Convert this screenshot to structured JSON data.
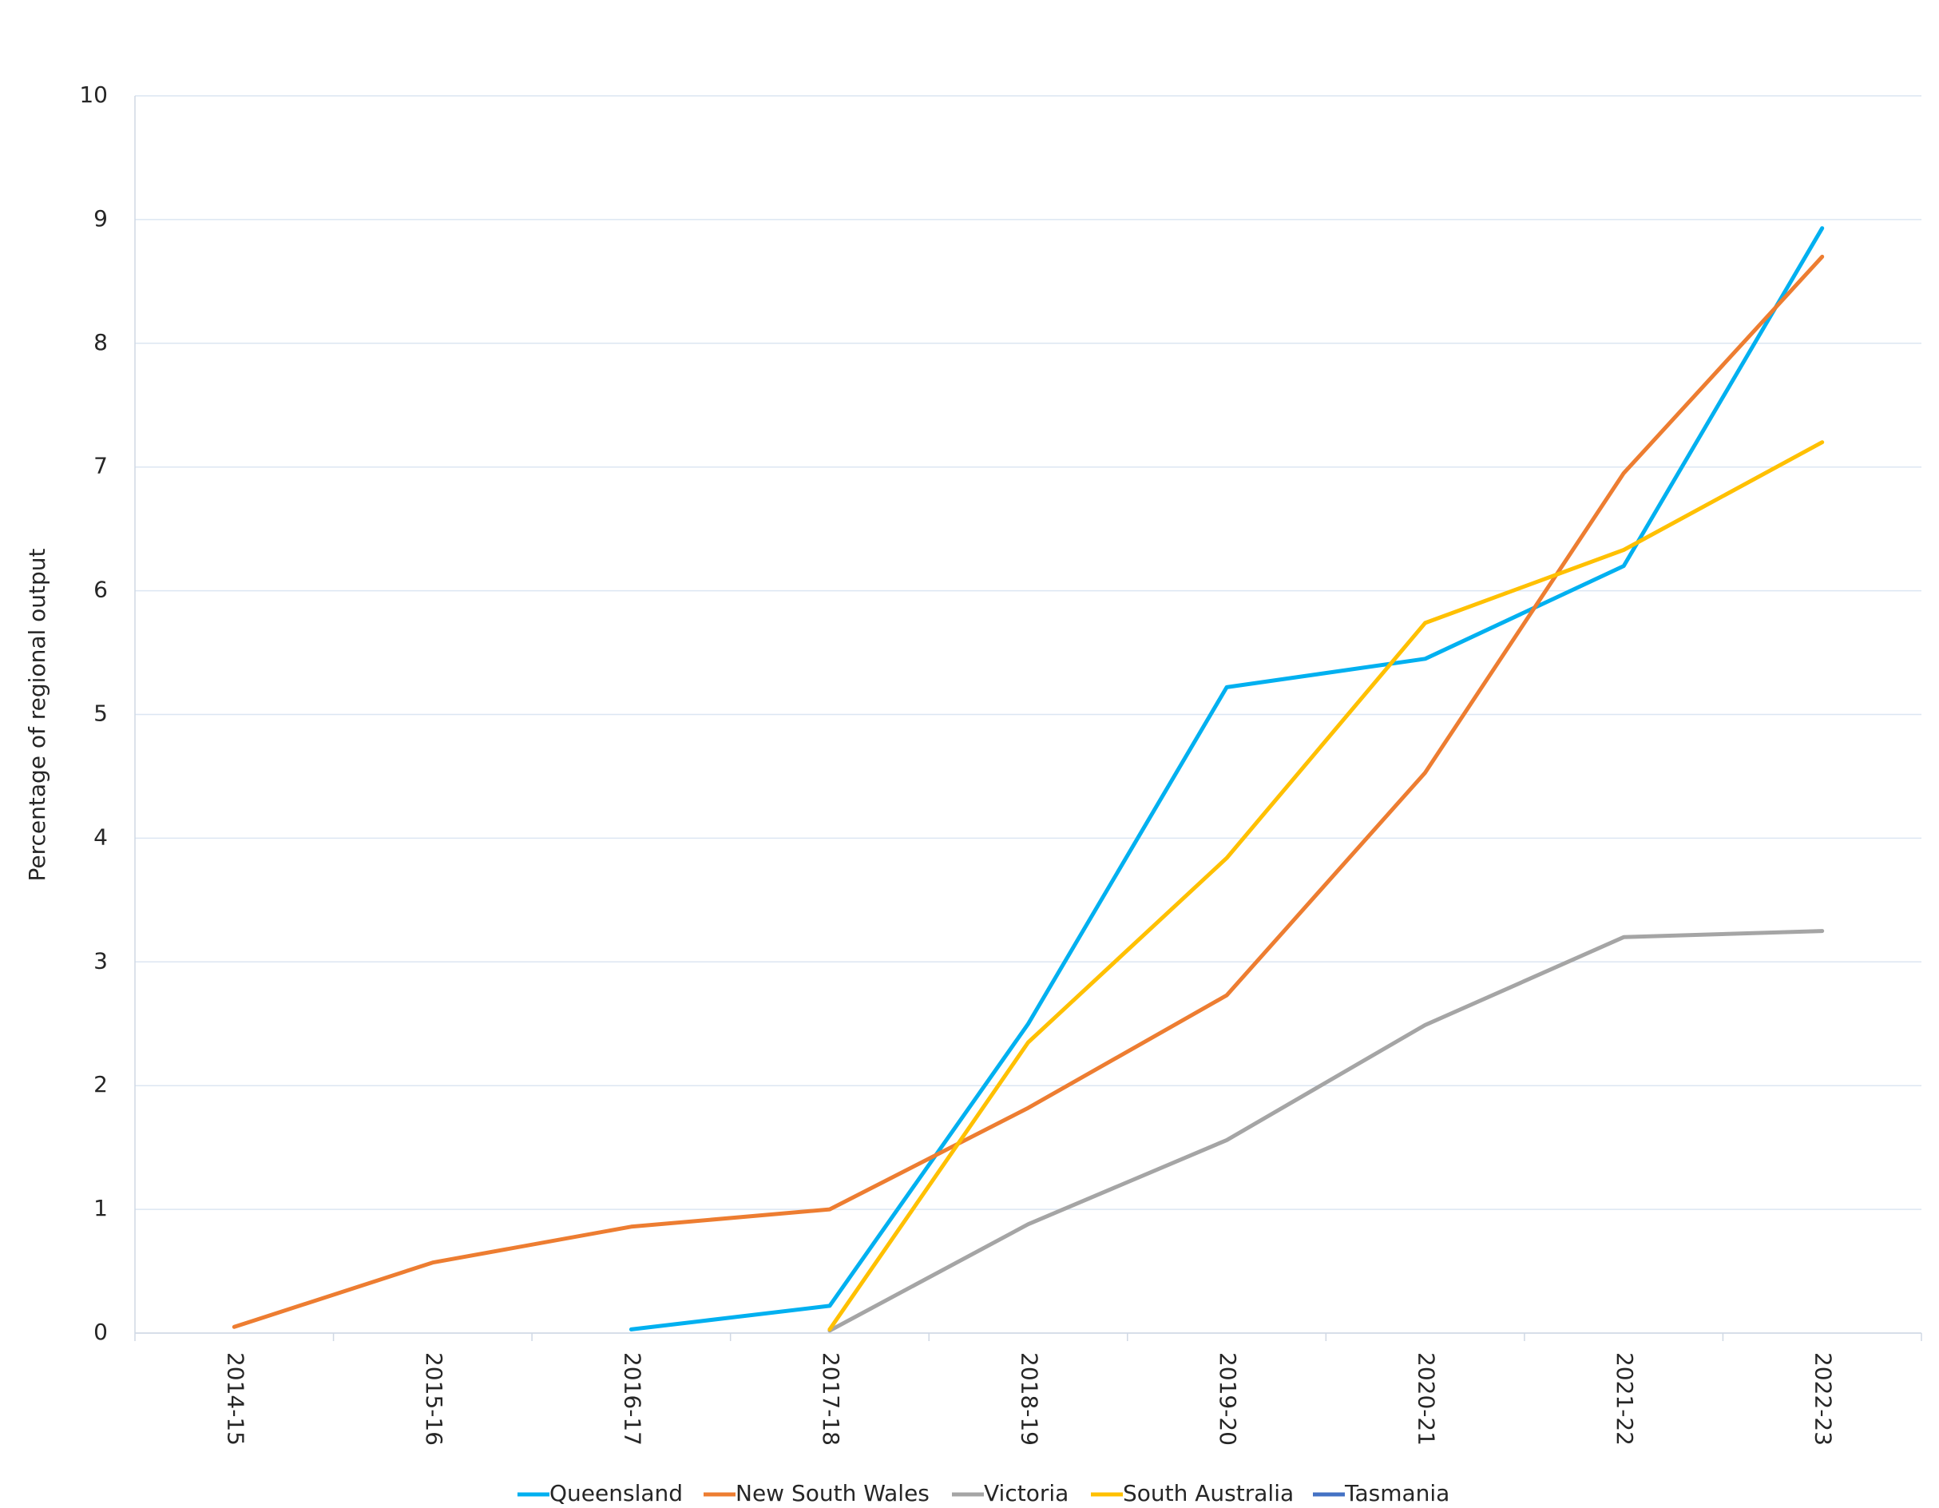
{
  "chart_data": {
    "type": "line",
    "y_label": "Percentage of regional output",
    "categories": [
      "2014-15",
      "2015-16",
      "2016-17",
      "2017-18",
      "2018-19",
      "2019-20",
      "2020-21",
      "2021-22",
      "2022-23"
    ],
    "series": [
      {
        "name": "Queensland",
        "color": "#00b0f0",
        "values": [
          null,
          null,
          0.03,
          0.22,
          2.5,
          5.22,
          5.45,
          6.2,
          8.93
        ]
      },
      {
        "name": "New South Wales",
        "color": "#ed7d31",
        "values": [
          0.05,
          0.57,
          0.86,
          1.0,
          1.82,
          2.73,
          4.53,
          6.95,
          8.7
        ]
      },
      {
        "name": "Victoria",
        "color": "#a5a5a5",
        "values": [
          null,
          null,
          null,
          0.02,
          0.88,
          1.56,
          2.49,
          3.2,
          3.25
        ]
      },
      {
        "name": "South Australia",
        "color": "#ffc000",
        "values": [
          null,
          null,
          null,
          0.03,
          2.35,
          3.84,
          5.74,
          6.33,
          7.2
        ]
      },
      {
        "name": "Tasmania",
        "color": "#4472c4",
        "values": [
          null,
          null,
          null,
          null,
          null,
          null,
          null,
          null,
          null
        ]
      }
    ],
    "ylim": [
      0,
      10
    ],
    "yticks": [
      0,
      1,
      2,
      3,
      4,
      5,
      6,
      7,
      8,
      9,
      10
    ],
    "grid": true,
    "legend": "bottom"
  }
}
